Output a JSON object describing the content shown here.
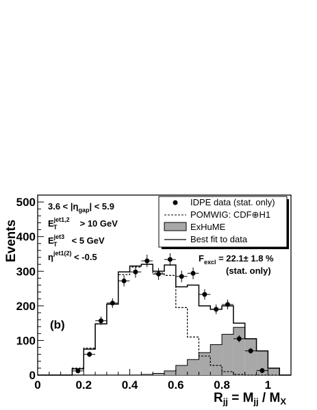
{
  "chart_data": {
    "type": "histogram",
    "xlim": [
      0,
      1.1
    ],
    "ylim": [
      0,
      520
    ],
    "x_ticks": [
      "0",
      "0.2",
      "0.4",
      "0.6",
      "0.8",
      "1"
    ],
    "y_ticks": [
      "0",
      "100",
      "200",
      "300",
      "400",
      "500"
    ],
    "xlabel": {
      "main": "R",
      "main_sub": "jj",
      "eq": " = M",
      "eq_sub": "jj",
      "slash": " / M",
      "slash_sub": "X"
    },
    "ylabel": "Events",
    "panel_label": "(b)",
    "cuts": {
      "gap": {
        "pre": "3.6 < |η",
        "sub": "gap",
        "post": "| < 5.9"
      },
      "et12": {
        "pre": "E",
        "sub": "T",
        "sup": "jet1,2",
        "post": " > 10 GeV"
      },
      "et3": {
        "pre": "E",
        "sub": "T",
        "sup": "jet3",
        "post": " < 5 GeV"
      },
      "eta": {
        "pre": "η",
        "sup": "jet1(2)",
        "post": " < -0.5"
      }
    },
    "fit": {
      "prefix": "F",
      "sub": "excl",
      "value": " = 22.1± 1.8 %",
      "note": "(stat. only)"
    },
    "legend": [
      {
        "label": "IDPE data (stat. only)",
        "style": "marker"
      },
      {
        "label": "POMWIG: CDF⊕H1",
        "style": "dashed"
      },
      {
        "label": "ExHuME",
        "style": "filled"
      },
      {
        "label": "Best fit to data",
        "style": "solid"
      }
    ],
    "bin_edges": [
      0.0,
      0.05,
      0.1,
      0.15,
      0.2,
      0.25,
      0.3,
      0.35,
      0.4,
      0.45,
      0.5,
      0.55,
      0.6,
      0.65,
      0.7,
      0.75,
      0.8,
      0.85,
      0.9,
      0.95,
      1.0,
      1.05,
      1.1
    ],
    "series": [
      {
        "name": "IDPE data (stat. only)",
        "type": "points",
        "x": [
          0.175,
          0.225,
          0.275,
          0.325,
          0.375,
          0.425,
          0.475,
          0.525,
          0.575,
          0.625,
          0.675,
          0.725,
          0.775,
          0.825,
          0.875,
          0.925,
          0.975
        ],
        "y": [
          12,
          60,
          157,
          208,
          272,
          298,
          330,
          292,
          334,
          285,
          294,
          233,
          190,
          204,
          105,
          70,
          13
        ],
        "yerr": [
          4,
          8,
          12,
          14,
          16,
          17,
          18,
          17,
          18,
          17,
          17,
          15,
          14,
          14,
          10,
          8,
          4
        ]
      },
      {
        "name": "POMWIG: CDF⊕H1",
        "type": "step-dashed",
        "values": [
          0,
          0,
          0,
          20,
          78,
          148,
          205,
          290,
          312,
          320,
          295,
          288,
          195,
          110,
          55,
          28,
          10,
          2,
          0,
          0,
          0,
          0
        ]
      },
      {
        "name": "ExHuME",
        "type": "step-filled",
        "values": [
          0,
          0,
          0,
          0,
          0,
          0,
          0,
          0,
          0,
          2,
          5,
          12,
          28,
          45,
          65,
          88,
          118,
          138,
          105,
          70,
          20,
          0
        ]
      },
      {
        "name": "Best fit to data",
        "type": "step-solid",
        "values": [
          0,
          0,
          0,
          18,
          75,
          148,
          205,
          298,
          315,
          320,
          300,
          318,
          255,
          260,
          200,
          190,
          200,
          150,
          105,
          70,
          20,
          0
        ]
      }
    ],
    "colors": {
      "filled": "#a8a8a8",
      "line": "#000000"
    }
  }
}
